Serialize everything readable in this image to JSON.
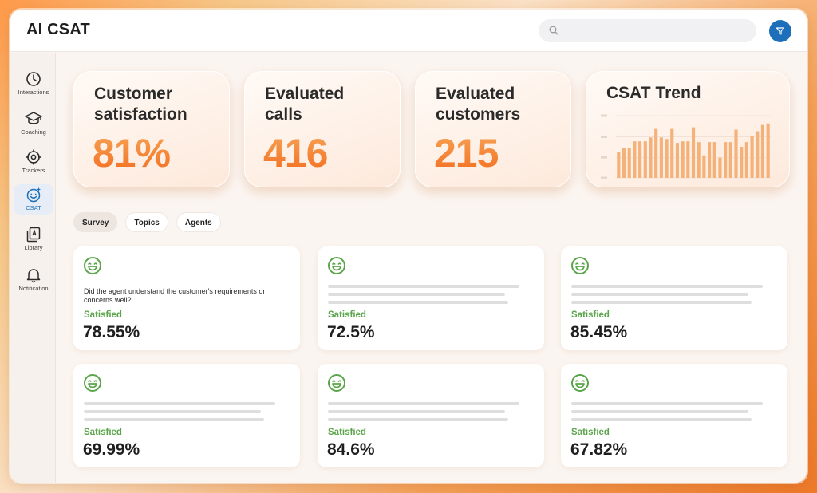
{
  "app": {
    "title": "AI CSAT"
  },
  "search": {
    "placeholder": ""
  },
  "sidebar": {
    "items": [
      {
        "label": "Interactions",
        "icon": "clock-icon"
      },
      {
        "label": "Coaching",
        "icon": "graduation-cap-icon"
      },
      {
        "label": "Trackers",
        "icon": "target-icon"
      },
      {
        "label": "CSAT",
        "icon": "smile-sparkle-icon",
        "active": true
      },
      {
        "label": "Library",
        "icon": "library-icon"
      },
      {
        "label": "Notification",
        "icon": "bell-icon"
      }
    ],
    "help_label": "?"
  },
  "kpis": [
    {
      "title": "Customer satisfaction",
      "value": "81%"
    },
    {
      "title": "Evaluated calls",
      "value": "416"
    },
    {
      "title": "Evaluated customers",
      "value": "215"
    }
  ],
  "trend": {
    "title": "CSAT Trend"
  },
  "chart_data": {
    "type": "bar",
    "title": "CSAT Trend",
    "values": [
      33,
      38,
      38,
      47,
      47,
      47,
      52,
      63,
      52,
      50,
      63,
      45,
      47,
      47,
      65,
      46,
      29,
      46,
      46,
      26,
      46,
      46,
      62,
      40,
      46,
      54,
      60,
      68,
      70
    ],
    "ylim": [
      0,
      80
    ],
    "grid": true
  },
  "tabs": [
    {
      "label": "Survey",
      "active": true
    },
    {
      "label": "Topics"
    },
    {
      "label": "Agents"
    }
  ],
  "cards": [
    {
      "question": "Did the agent understand the customer's requirements or concerns well?",
      "status": "Satisfied",
      "value": "78.55%"
    },
    {
      "question": "",
      "status": "Satisfied",
      "value": "72.5%"
    },
    {
      "question": "",
      "status": "Satisfied",
      "value": "85.45%"
    },
    {
      "question": "",
      "status": "Satisfied",
      "value": "69.99%"
    },
    {
      "question": "",
      "status": "Satisfied",
      "value": "84.6%"
    },
    {
      "question": "",
      "status": "Satisfied",
      "value": "67.82%"
    }
  ],
  "colors": {
    "accent": "#1c6fb8",
    "kpi_value": "#f26d1f",
    "status_satisfied": "#5aa54a",
    "smile_icon": "#5aa54a",
    "trend_bar": "#f5b17a"
  }
}
